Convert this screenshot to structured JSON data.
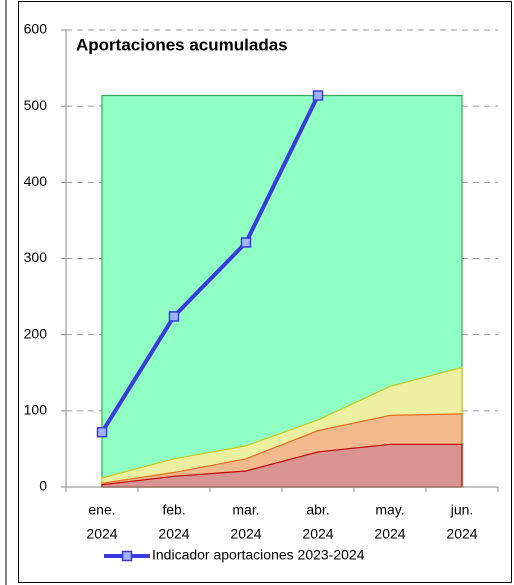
{
  "chart_data": {
    "type": "line",
    "title": "Aportaciones acumuladas",
    "categories": [
      [
        "ene.",
        "2024"
      ],
      [
        "feb.",
        "2024"
      ],
      [
        "mar.",
        "2024"
      ],
      [
        "abr.",
        "2024"
      ],
      [
        "may.",
        "2024"
      ],
      [
        "jun.",
        "2024"
      ]
    ],
    "ylim": [
      0,
      600
    ],
    "yticks": [
      0,
      100,
      200,
      300,
      400,
      500,
      600
    ],
    "grid": true,
    "legend": "bottom",
    "areas": [
      {
        "color": "#8fffc4",
        "edge": "#33aa55",
        "values": [
          514,
          514,
          514,
          514,
          514,
          514
        ]
      },
      {
        "color": "#ecf0a0",
        "edge": "#c8c820",
        "values": [
          12,
          37,
          54,
          88,
          132,
          157
        ]
      },
      {
        "color": "#f5b98e",
        "edge": "#e07020",
        "values": [
          5,
          19,
          37,
          74,
          94,
          96
        ]
      },
      {
        "color": "#d99393",
        "edge": "#c00000",
        "values": [
          3,
          14,
          21,
          46,
          56,
          56
        ]
      }
    ],
    "series": [
      {
        "name": "Indicador aportaciones 2023-2024",
        "color": "#3b3bdc",
        "values": [
          72,
          224,
          321,
          514,
          null,
          null
        ]
      }
    ]
  }
}
